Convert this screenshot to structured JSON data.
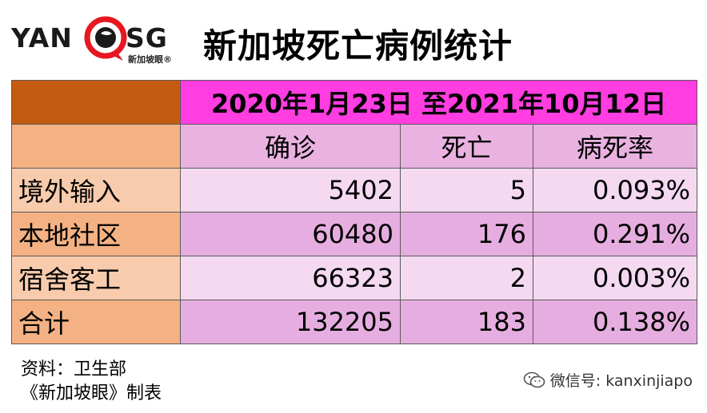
{
  "logo": {
    "left_text": "YAN",
    "right_text": "SG",
    "subtitle": "新加坡眼®",
    "brand_color": "#e8171f"
  },
  "title": "新加坡死亡病例统计",
  "table": {
    "date_range": "2020年1月23日 至2021年10月12日",
    "columns": [
      "确诊",
      "死亡",
      "病死率"
    ],
    "rows": [
      {
        "label": "境外输入",
        "confirmed": "5402",
        "deaths": "5",
        "rate": "0.093%"
      },
      {
        "label": "本地社区",
        "confirmed": "60480",
        "deaths": "176",
        "rate": "0.291%"
      },
      {
        "label": "宿舍客工",
        "confirmed": "66323",
        "deaths": "2",
        "rate": "0.003%"
      },
      {
        "label": "合计",
        "confirmed": "132205",
        "deaths": "183",
        "rate": "0.138%"
      }
    ],
    "colors": {
      "corner": "#c55a11",
      "date_header": "#ff3de0",
      "label_light": "#f8cbad",
      "label_dark": "#f4b183",
      "value_light": "#f4d9f1",
      "value_dark": "#e6aee0"
    }
  },
  "footer": {
    "source_line": "资料：卫生部",
    "made_by_line": "《新加坡眼》制表",
    "wechat_icon": "wechat-icon",
    "wechat_text": "微信号: kanxinjiapo"
  }
}
